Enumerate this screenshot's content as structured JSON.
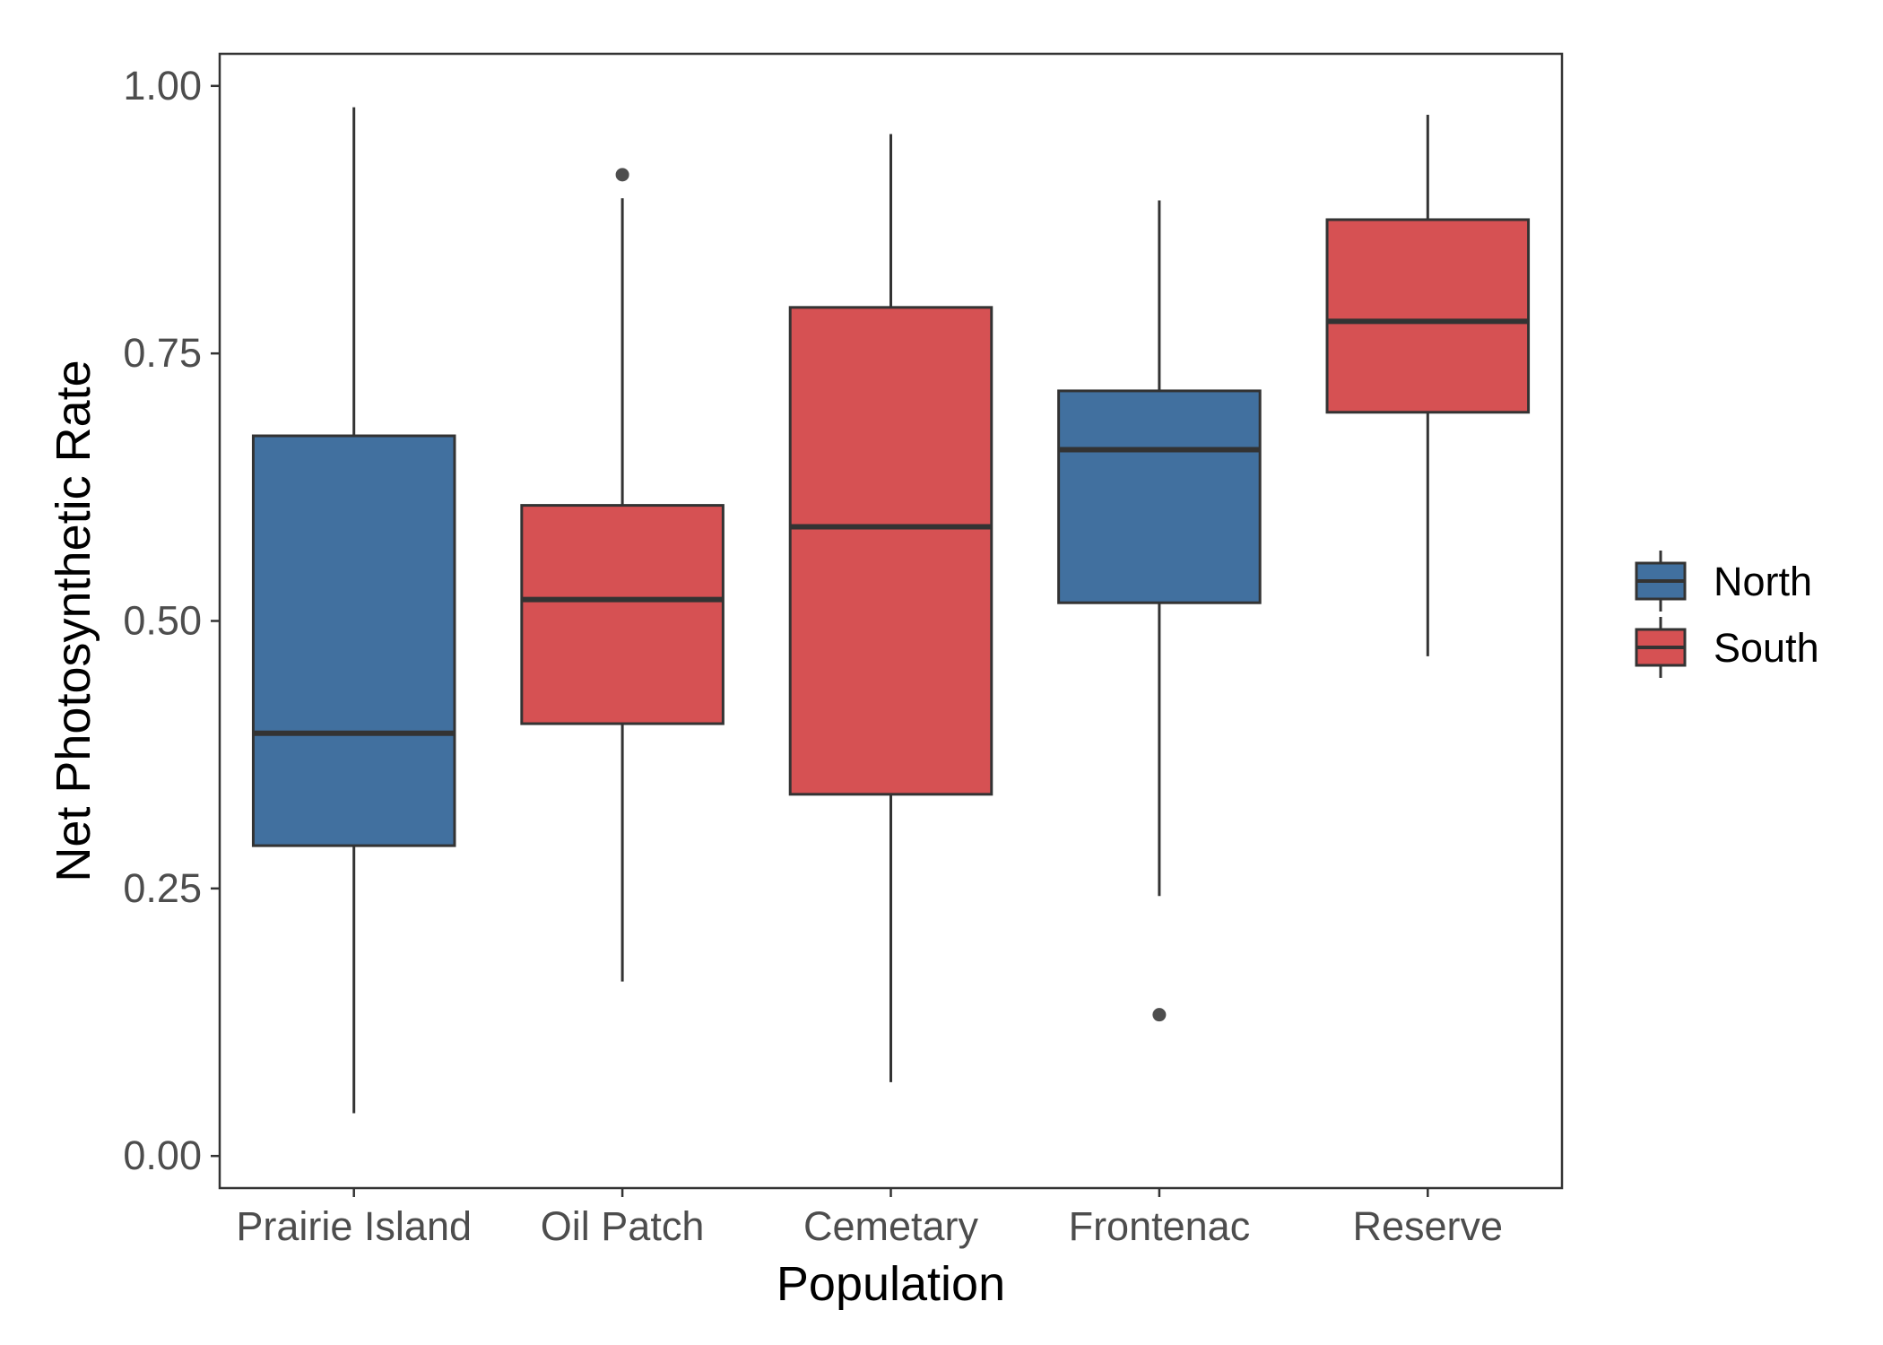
{
  "chart_data": {
    "type": "boxplot",
    "title": "",
    "xlabel": "Population",
    "ylabel": "Net Photosynthetic Rate",
    "ylim": [
      -0.03,
      1.03
    ],
    "yticks": [
      0.0,
      0.25,
      0.5,
      0.75,
      1.0
    ],
    "ytick_labels": [
      "0.00",
      "0.25",
      "0.50",
      "0.75",
      "1.00"
    ],
    "grid": false,
    "legend_position": "right",
    "groups": [
      {
        "name": "North",
        "color": "#41709f"
      },
      {
        "name": "South",
        "color": "#d65153"
      }
    ],
    "categories": [
      "Prairie Island",
      "Oil Patch",
      "Cemetary",
      "Frontenac",
      "Reserve"
    ],
    "boxes": [
      {
        "category": "Prairie Island",
        "group": "North",
        "min": 0.04,
        "q1": 0.29,
        "median": 0.395,
        "q3": 0.673,
        "max": 0.98,
        "outliers": []
      },
      {
        "category": "Oil Patch",
        "group": "South",
        "min": 0.163,
        "q1": 0.404,
        "median": 0.52,
        "q3": 0.608,
        "max": 0.895,
        "outliers": [
          0.917
        ]
      },
      {
        "category": "Cemetary",
        "group": "South",
        "min": 0.069,
        "q1": 0.338,
        "median": 0.588,
        "q3": 0.793,
        "max": 0.955,
        "outliers": []
      },
      {
        "category": "Frontenac",
        "group": "North",
        "min": 0.243,
        "q1": 0.517,
        "median": 0.66,
        "q3": 0.715,
        "max": 0.893,
        "outliers": [
          0.132
        ]
      },
      {
        "category": "Reserve",
        "group": "South",
        "min": 0.467,
        "q1": 0.695,
        "median": 0.78,
        "q3": 0.875,
        "max": 0.973,
        "outliers": []
      }
    ]
  }
}
